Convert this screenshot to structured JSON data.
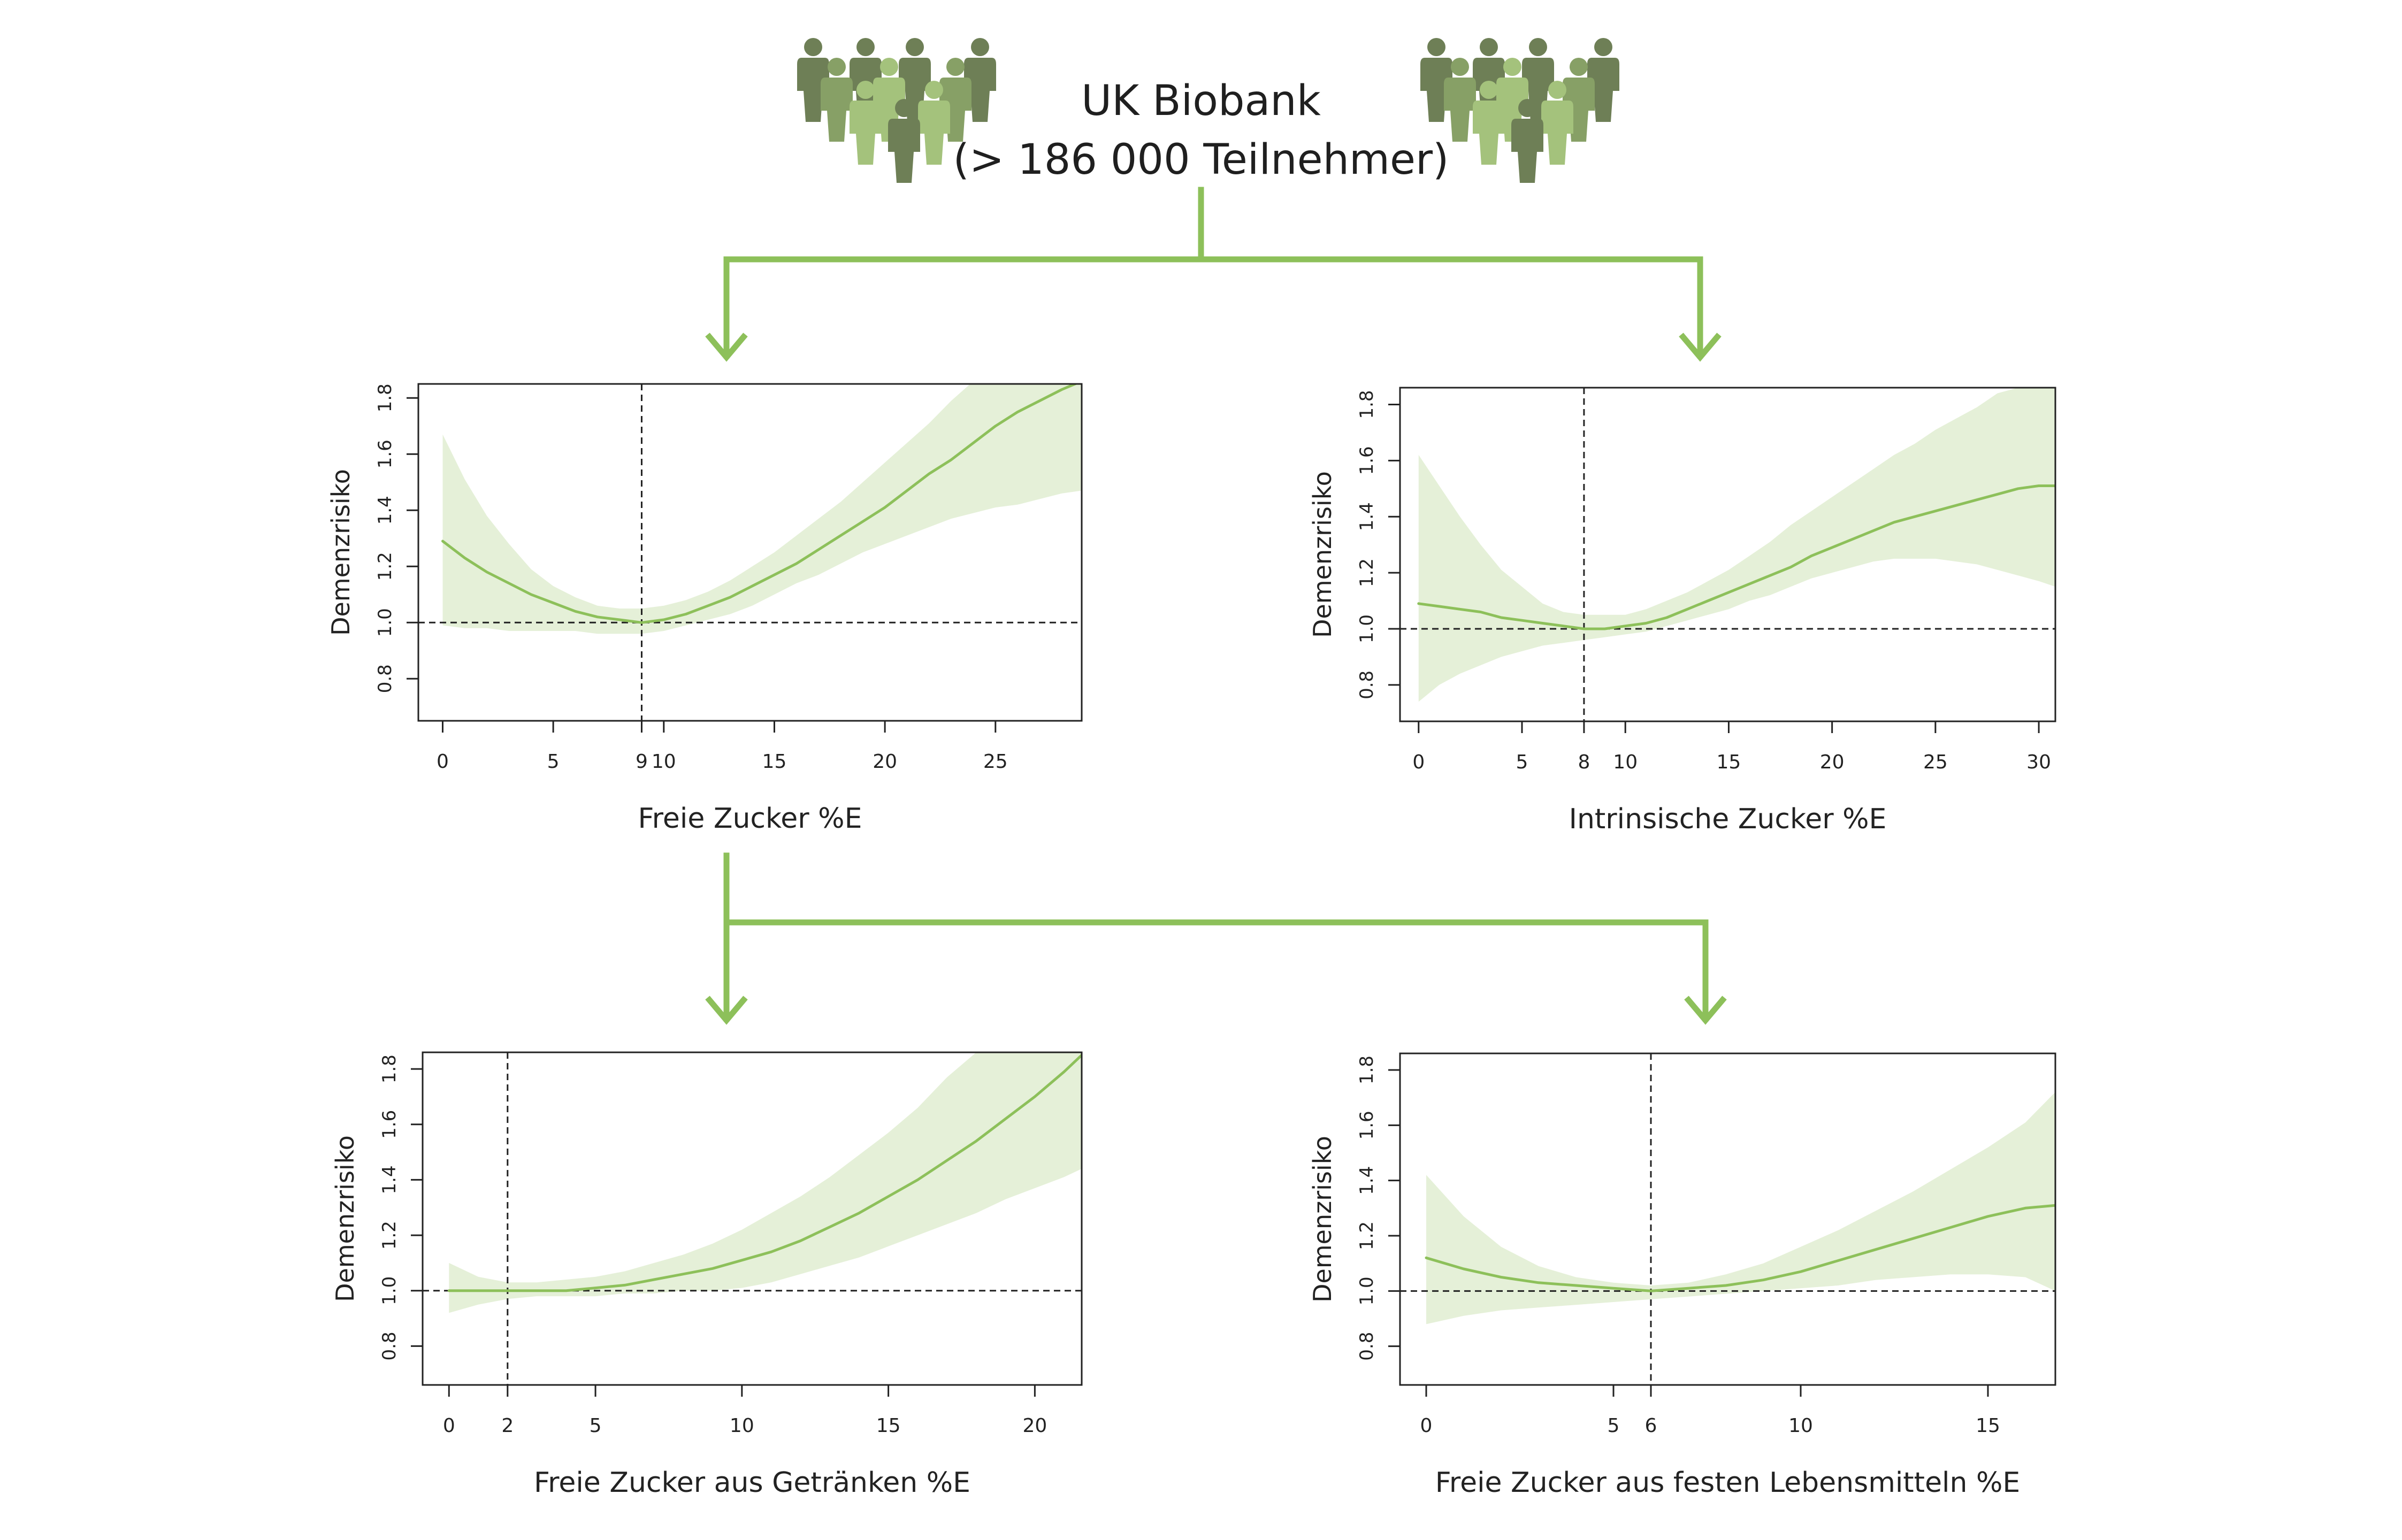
{
  "header": {
    "title_line1": "UK Biobank",
    "title_line2": "(> 186 000 Teilnehmer)"
  },
  "colors": {
    "accent": "#8dc05a",
    "line": "#8dc05a",
    "band": "#e5f0d8",
    "people_dark": "#6e7f56",
    "people_mid": "#87a066",
    "people_light": "#a4c27c",
    "axis": "#222222"
  },
  "icons": [
    "people-group-icon",
    "people-group-icon"
  ],
  "chart_data": [
    {
      "type": "line",
      "ylabel": "Demenzrisiko",
      "xlabel": "Freie Zucker %E",
      "xlim": [
        -1.1,
        28.9
      ],
      "ylim": [
        0.65,
        1.85
      ],
      "xticks": [
        0,
        5,
        9,
        10,
        15,
        20,
        25
      ],
      "yticks": [
        0.8,
        1.0,
        1.2,
        1.4,
        1.6,
        1.8
      ],
      "reference_x": 9,
      "reference_y": 1.0,
      "x": [
        0,
        1,
        2,
        3,
        4,
        5,
        6,
        7,
        8,
        9,
        10,
        11,
        12,
        13,
        14,
        15,
        16,
        17,
        18,
        19,
        20,
        21,
        22,
        23,
        24,
        25,
        26,
        27,
        28,
        28.9
      ],
      "y": [
        1.29,
        1.23,
        1.18,
        1.14,
        1.1,
        1.07,
        1.04,
        1.02,
        1.01,
        1.0,
        1.01,
        1.03,
        1.06,
        1.09,
        1.13,
        1.17,
        1.21,
        1.26,
        1.31,
        1.36,
        1.41,
        1.47,
        1.53,
        1.58,
        1.64,
        1.7,
        1.75,
        1.79,
        1.83,
        1.86
      ],
      "lower": [
        0.99,
        0.98,
        0.98,
        0.97,
        0.97,
        0.97,
        0.97,
        0.96,
        0.96,
        0.96,
        0.97,
        0.99,
        1.01,
        1.03,
        1.06,
        1.1,
        1.14,
        1.17,
        1.21,
        1.25,
        1.28,
        1.31,
        1.34,
        1.37,
        1.39,
        1.41,
        1.42,
        1.44,
        1.46,
        1.47
      ],
      "upper": [
        1.67,
        1.51,
        1.38,
        1.28,
        1.19,
        1.13,
        1.09,
        1.06,
        1.05,
        1.05,
        1.06,
        1.08,
        1.11,
        1.15,
        1.2,
        1.25,
        1.31,
        1.37,
        1.43,
        1.5,
        1.57,
        1.64,
        1.71,
        1.79,
        1.86,
        1.86,
        1.86,
        1.86,
        1.86,
        1.86
      ]
    },
    {
      "type": "line",
      "ylabel": "Demenzrisiko",
      "xlabel": "Intrinsische Zucker %E",
      "xlim": [
        -0.9,
        30.8
      ],
      "ylim": [
        0.67,
        1.86
      ],
      "xticks": [
        0,
        5,
        8,
        10,
        15,
        20,
        25,
        30
      ],
      "yticks": [
        0.8,
        1.0,
        1.2,
        1.4,
        1.6,
        1.8
      ],
      "reference_x": 8,
      "reference_y": 1.0,
      "x": [
        0,
        1,
        2,
        3,
        4,
        5,
        6,
        7,
        8,
        9,
        10,
        11,
        12,
        13,
        14,
        15,
        16,
        17,
        18,
        19,
        20,
        21,
        22,
        23,
        24,
        25,
        26,
        27,
        28,
        29,
        30,
        30.8
      ],
      "y": [
        1.09,
        1.08,
        1.07,
        1.06,
        1.04,
        1.03,
        1.02,
        1.01,
        1.0,
        1.0,
        1.01,
        1.02,
        1.04,
        1.07,
        1.1,
        1.13,
        1.16,
        1.19,
        1.22,
        1.26,
        1.29,
        1.32,
        1.35,
        1.38,
        1.4,
        1.42,
        1.44,
        1.46,
        1.48,
        1.5,
        1.51,
        1.51
      ],
      "lower": [
        0.74,
        0.8,
        0.84,
        0.87,
        0.9,
        0.92,
        0.94,
        0.95,
        0.96,
        0.97,
        0.98,
        0.99,
        1.01,
        1.03,
        1.05,
        1.07,
        1.1,
        1.12,
        1.15,
        1.18,
        1.2,
        1.22,
        1.24,
        1.25,
        1.25,
        1.25,
        1.24,
        1.23,
        1.21,
        1.19,
        1.17,
        1.15
      ],
      "upper": [
        1.62,
        1.51,
        1.4,
        1.3,
        1.21,
        1.15,
        1.09,
        1.06,
        1.05,
        1.05,
        1.05,
        1.07,
        1.1,
        1.13,
        1.17,
        1.21,
        1.26,
        1.31,
        1.37,
        1.42,
        1.47,
        1.52,
        1.57,
        1.62,
        1.66,
        1.71,
        1.75,
        1.79,
        1.84,
        1.86,
        1.86,
        1.86
      ]
    },
    {
      "type": "line",
      "ylabel": "Demenzrisiko",
      "xlabel": "Freie Zucker aus Getränken %E",
      "xlim": [
        -0.9,
        21.6
      ],
      "ylim": [
        0.66,
        1.86
      ],
      "xticks": [
        0,
        2,
        5,
        10,
        15,
        20
      ],
      "yticks": [
        0.8,
        1.0,
        1.2,
        1.4,
        1.6,
        1.8
      ],
      "reference_x": 2,
      "reference_y": 1.0,
      "x": [
        0,
        1,
        2,
        3,
        4,
        5,
        6,
        7,
        8,
        9,
        10,
        11,
        12,
        13,
        14,
        15,
        16,
        17,
        18,
        19,
        20,
        21,
        21.6
      ],
      "y": [
        1.0,
        1.0,
        1.0,
        1.0,
        1.0,
        1.01,
        1.02,
        1.04,
        1.06,
        1.08,
        1.11,
        1.14,
        1.18,
        1.23,
        1.28,
        1.34,
        1.4,
        1.47,
        1.54,
        1.62,
        1.7,
        1.79,
        1.85
      ],
      "lower": [
        0.92,
        0.95,
        0.97,
        0.98,
        0.98,
        0.98,
        0.99,
        0.99,
        1.0,
        1.0,
        1.01,
        1.03,
        1.06,
        1.09,
        1.12,
        1.16,
        1.2,
        1.24,
        1.28,
        1.33,
        1.37,
        1.41,
        1.44
      ],
      "upper": [
        1.1,
        1.05,
        1.03,
        1.03,
        1.04,
        1.05,
        1.07,
        1.1,
        1.13,
        1.17,
        1.22,
        1.28,
        1.34,
        1.41,
        1.49,
        1.57,
        1.66,
        1.77,
        1.86,
        1.86,
        1.86,
        1.86,
        1.86
      ]
    },
    {
      "type": "line",
      "ylabel": "Demenzrisiko",
      "xlabel": "Freie Zucker aus festen Lebensmitteln %E",
      "xlim": [
        -0.7,
        16.8
      ],
      "ylim": [
        0.66,
        1.86
      ],
      "xticks": [
        0,
        5,
        6,
        10,
        15
      ],
      "yticks": [
        0.8,
        1.0,
        1.2,
        1.4,
        1.6,
        1.8
      ],
      "reference_x": 6,
      "reference_y": 1.0,
      "x": [
        0,
        1,
        2,
        3,
        4,
        5,
        6,
        7,
        8,
        9,
        10,
        11,
        12,
        13,
        14,
        15,
        16,
        16.8
      ],
      "y": [
        1.12,
        1.08,
        1.05,
        1.03,
        1.02,
        1.01,
        1.0,
        1.01,
        1.02,
        1.04,
        1.07,
        1.11,
        1.15,
        1.19,
        1.23,
        1.27,
        1.3,
        1.31
      ],
      "lower": [
        0.88,
        0.91,
        0.93,
        0.94,
        0.95,
        0.96,
        0.97,
        0.98,
        0.99,
        1.0,
        1.01,
        1.02,
        1.04,
        1.05,
        1.06,
        1.06,
        1.05,
        1.0
      ],
      "upper": [
        1.42,
        1.27,
        1.16,
        1.09,
        1.05,
        1.03,
        1.02,
        1.03,
        1.06,
        1.1,
        1.16,
        1.22,
        1.29,
        1.36,
        1.44,
        1.52,
        1.61,
        1.72
      ]
    }
  ]
}
